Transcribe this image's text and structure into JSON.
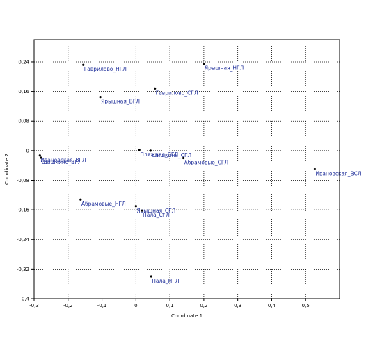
{
  "chart_data": {
    "type": "scatter",
    "title": "",
    "xlabel": "Coordinate 1",
    "ylabel": "Coordinate 2",
    "xlim": [
      -0.3,
      0.6
    ],
    "ylim": [
      -0.4,
      0.3
    ],
    "grid": true,
    "legend": "none",
    "colors": {
      "point": "#000000",
      "label": "#1f2f9a",
      "grid": "#000000"
    },
    "x_ticks": [
      {
        "value": -0.3,
        "label": "-0,3"
      },
      {
        "value": -0.2,
        "label": "-0,2"
      },
      {
        "value": -0.1,
        "label": "-0,1"
      },
      {
        "value": 0.0,
        "label": "0"
      },
      {
        "value": 0.1,
        "label": "0,1"
      },
      {
        "value": 0.2,
        "label": "0,2"
      },
      {
        "value": 0.3,
        "label": "0,3"
      },
      {
        "value": 0.4,
        "label": "0,4"
      },
      {
        "value": 0.5,
        "label": "0,5"
      }
    ],
    "y_ticks": [
      {
        "value": 0.24,
        "label": "0,24"
      },
      {
        "value": 0.16,
        "label": "0,16"
      },
      {
        "value": 0.08,
        "label": "0,08"
      },
      {
        "value": 0.0,
        "label": "0"
      },
      {
        "value": -0.08,
        "label": "-0,08"
      },
      {
        "value": -0.16,
        "label": "-0,16"
      },
      {
        "value": -0.24,
        "label": "-0,24"
      },
      {
        "value": -0.32,
        "label": "-0,32"
      },
      {
        "value": -0.4,
        "label": "-0,4"
      }
    ],
    "points": [
      {
        "label": "Гаврилово_НГЛ",
        "x": -0.155,
        "y": 0.232
      },
      {
        "label": "Ярышная_НГЛ",
        "x": 0.2,
        "y": 0.235
      },
      {
        "label": "Гаврилово_СГЛ",
        "x": 0.056,
        "y": 0.168
      },
      {
        "label": "Ярышная_ВГЛ",
        "x": -0.105,
        "y": 0.145
      },
      {
        "label": "Ивановская_ВГЛ",
        "x": -0.283,
        "y": -0.013
      },
      {
        "label": "Шишкино_ВГЛ",
        "x": -0.28,
        "y": -0.019
      },
      {
        "label": "Пляжная_СГЛ",
        "x": 0.01,
        "y": 0.002
      },
      {
        "label": "Шишкина_СГЛ",
        "x": 0.043,
        "y": 0.0
      },
      {
        "label": "Абрамовые_СГЛ",
        "x": 0.14,
        "y": -0.02
      },
      {
        "label": "Ивановская_ВСЛ",
        "x": 0.527,
        "y": -0.05
      },
      {
        "label": "Абрамовые_НГЛ",
        "x": -0.163,
        "y": -0.132
      },
      {
        "label": "Ярышная_СГЛ",
        "x": 0.0,
        "y": -0.15
      },
      {
        "label": "Пала_СГЛ",
        "x": 0.018,
        "y": -0.162
      },
      {
        "label": "Пала_НГЛ",
        "x": 0.045,
        "y": -0.34
      }
    ]
  }
}
